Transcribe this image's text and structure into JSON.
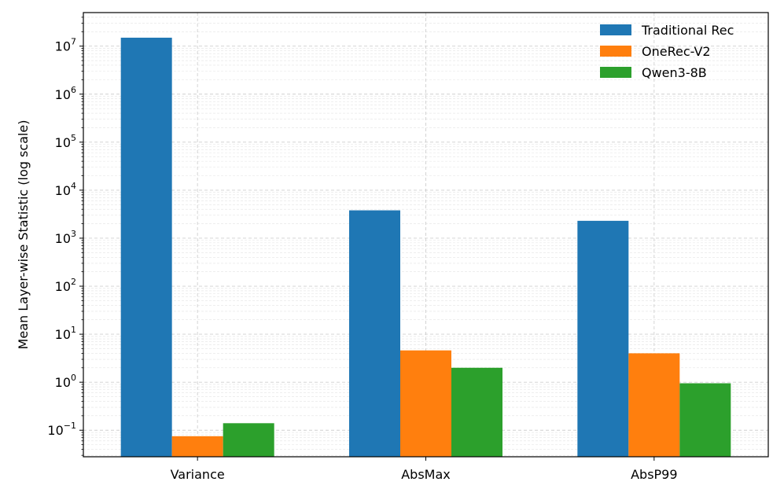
{
  "chart_data": {
    "type": "bar",
    "ylabel": "Mean Layer-wise Statistic (log scale)",
    "xlabel": "",
    "yscale": "log",
    "ylim": [
      0.028,
      50000000
    ],
    "y_ticks": [
      {
        "value": 0.1,
        "base": "10",
        "exp": "−1"
      },
      {
        "value": 1,
        "base": "10",
        "exp": "0"
      },
      {
        "value": 10,
        "base": "10",
        "exp": "1"
      },
      {
        "value": 100,
        "base": "10",
        "exp": "2"
      },
      {
        "value": 1000,
        "base": "10",
        "exp": "3"
      },
      {
        "value": 10000,
        "base": "10",
        "exp": "4"
      },
      {
        "value": 100000,
        "base": "10",
        "exp": "5"
      },
      {
        "value": 1000000,
        "base": "10",
        "exp": "6"
      },
      {
        "value": 10000000,
        "base": "10",
        "exp": "7"
      }
    ],
    "categories": [
      "Variance",
      "AbsMax",
      "AbsP99"
    ],
    "series": [
      {
        "name": "Traditional Rec",
        "color": "#1f77b4",
        "values": [
          15000000,
          3800,
          2300
        ]
      },
      {
        "name": "OneRec-V2",
        "color": "#ff7f0e",
        "values": [
          0.075,
          4.6,
          4.0
        ]
      },
      {
        "name": "Qwen3-8B",
        "color": "#2ca02c",
        "values": [
          0.14,
          2.0,
          0.95
        ]
      }
    ],
    "grid": true,
    "legend_position": "top-right"
  }
}
